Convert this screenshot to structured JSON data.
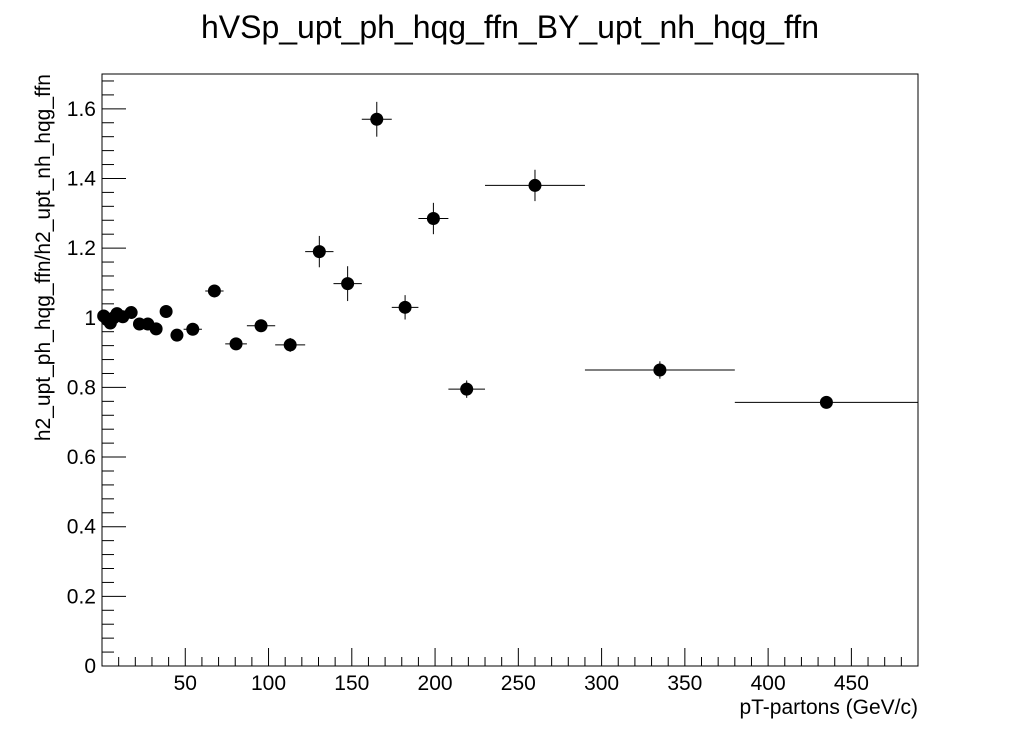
{
  "chart_data": {
    "type": "scatter",
    "title": "hVSp_upt_ph_hqg_ffn_BY_upt_nh_hqg_ffn",
    "xlabel": "pT-partons (GeV/c)",
    "ylabel": "h2_upt_ph_hqg_ffn/h2_upt_nh_hqg_ffn",
    "xlim": [
      0,
      490
    ],
    "ylim": [
      0,
      1.7
    ],
    "xticks": [
      50,
      100,
      150,
      200,
      250,
      300,
      350,
      400,
      450
    ],
    "yticks": [
      0,
      0.2,
      0.4,
      0.6,
      0.8,
      1,
      1.2,
      1.4,
      1.6
    ],
    "xtick_labels": [
      "50",
      "100",
      "150",
      "200",
      "250",
      "300",
      "350",
      "400",
      "450"
    ],
    "ytick_labels": [
      "0",
      "0.2",
      "0.4",
      "0.6",
      "0.8",
      "1",
      "1.2",
      "1.4",
      "1.6"
    ],
    "grid": false,
    "marker_color": "#000000",
    "points": [
      {
        "x": 1.0,
        "y": 1.005,
        "xerr": 1.0,
        "yerr": 0.005
      },
      {
        "x": 3.0,
        "y": 0.995,
        "xerr": 1.0,
        "yerr": 0.006
      },
      {
        "x": 5.0,
        "y": 0.985,
        "xerr": 1.0,
        "yerr": 0.006
      },
      {
        "x": 7.0,
        "y": 1.0,
        "xerr": 1.0,
        "yerr": 0.006
      },
      {
        "x": 9.0,
        "y": 1.012,
        "xerr": 1.0,
        "yerr": 0.006
      },
      {
        "x": 12.5,
        "y": 1.003,
        "xerr": 2.5,
        "yerr": 0.006
      },
      {
        "x": 17.5,
        "y": 1.015,
        "xerr": 2.5,
        "yerr": 0.007
      },
      {
        "x": 22.5,
        "y": 0.982,
        "xerr": 2.5,
        "yerr": 0.008
      },
      {
        "x": 27.5,
        "y": 0.982,
        "xerr": 2.5,
        "yerr": 0.009
      },
      {
        "x": 32.5,
        "y": 0.968,
        "xerr": 2.5,
        "yerr": 0.01
      },
      {
        "x": 38.5,
        "y": 1.018,
        "xerr": 3.5,
        "yerr": 0.011
      },
      {
        "x": 45.0,
        "y": 0.95,
        "xerr": 3.0,
        "yerr": 0.012
      },
      {
        "x": 54.5,
        "y": 0.967,
        "xerr": 5.5,
        "yerr": 0.014
      },
      {
        "x": 67.5,
        "y": 1.077,
        "xerr": 5.5,
        "yerr": 0.015
      },
      {
        "x": 80.5,
        "y": 0.925,
        "xerr": 6.5,
        "yerr": 0.016
      },
      {
        "x": 95.5,
        "y": 0.977,
        "xerr": 8.5,
        "yerr": 0.018
      },
      {
        "x": 113.0,
        "y": 0.922,
        "xerr": 9.0,
        "yerr": 0.02
      },
      {
        "x": 130.5,
        "y": 1.19,
        "xerr": 8.5,
        "yerr": 0.045
      },
      {
        "x": 147.5,
        "y": 1.098,
        "xerr": 8.5,
        "yerr": 0.05
      },
      {
        "x": 165.0,
        "y": 1.57,
        "xerr": 9.0,
        "yerr": 0.05
      },
      {
        "x": 182.0,
        "y": 1.03,
        "xerr": 8.0,
        "yerr": 0.035
      },
      {
        "x": 199.0,
        "y": 1.285,
        "xerr": 9.0,
        "yerr": 0.045
      },
      {
        "x": 219.0,
        "y": 0.795,
        "xerr": 11.0,
        "yerr": 0.025
      },
      {
        "x": 260.0,
        "y": 1.38,
        "xerr": 30.0,
        "yerr": 0.045
      },
      {
        "x": 335.0,
        "y": 0.85,
        "xerr": 45.0,
        "yerr": 0.025
      },
      {
        "x": 435.0,
        "y": 0.757,
        "xerr": 55.0,
        "yerr": 0.012
      }
    ]
  }
}
